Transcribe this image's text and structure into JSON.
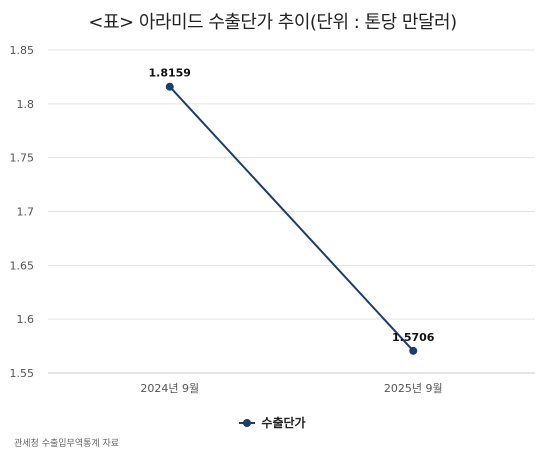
{
  "title": "<표> 아라미드 수출단가 추이(단위 : 톤당 만달러)",
  "source": "관세청 수출입무역통계 자료",
  "colors": {
    "series": "#1c3d6e",
    "grid": "#e3e3e3",
    "axis": "#c8c8c8"
  },
  "chart_data": {
    "type": "line",
    "title": "<표> 아라미드 수출단가 추이(단위 : 톤당 만달러)",
    "categories": [
      "2024년 9월",
      "2025년 9월"
    ],
    "series": [
      {
        "name": "수출단가",
        "values": [
          1.8159,
          1.5706
        ],
        "labels": [
          "1.8159",
          "1.5706"
        ]
      }
    ],
    "ylim": [
      1.55,
      1.85
    ],
    "yticks": [
      1.55,
      1.6,
      1.65,
      1.7,
      1.75,
      1.8,
      1.85
    ],
    "ytick_labels": [
      "1.55",
      "1.6",
      "1.65",
      "1.7",
      "1.75",
      "1.8",
      "1.85"
    ],
    "grid": true,
    "legend": "bottom-center"
  }
}
